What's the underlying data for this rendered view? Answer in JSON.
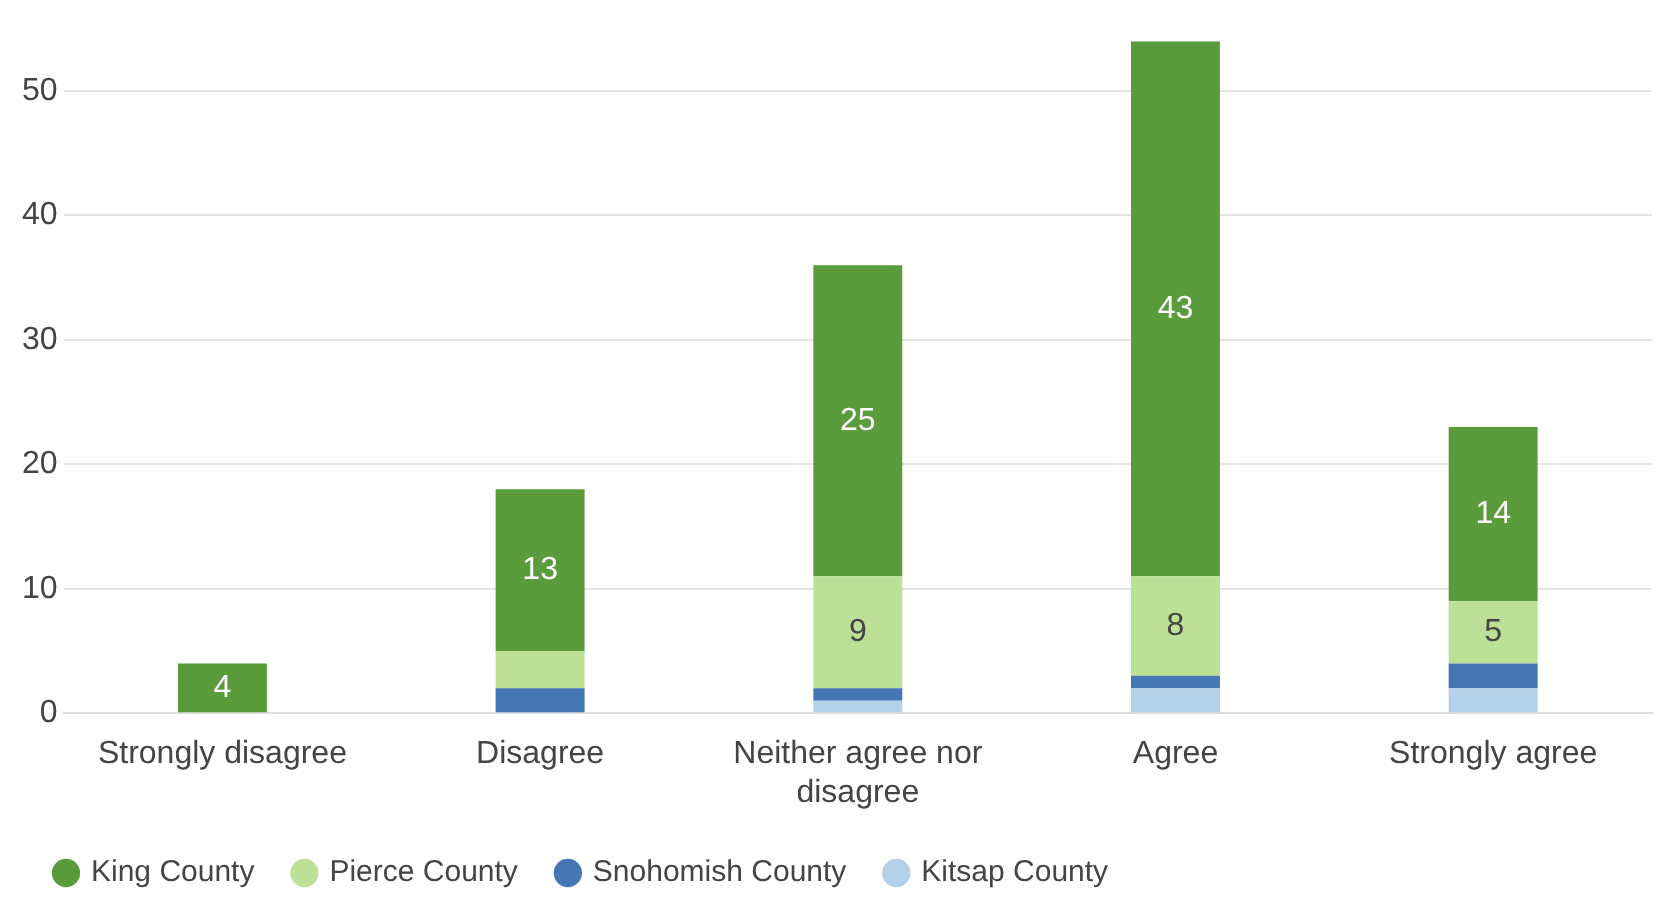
{
  "chart_data": {
    "type": "bar",
    "stacked": true,
    "categories": [
      "Strongly disagree",
      "Disagree",
      "Neither agree nor disagree",
      "Agree",
      "Strongly agree"
    ],
    "series": [
      {
        "name": "Kitsap County",
        "color": "#b3d1e8",
        "values": [
          0,
          0,
          1,
          2,
          2
        ],
        "value_labels": [
          null,
          null,
          null,
          null,
          null
        ]
      },
      {
        "name": "Snohomish County",
        "color": "#4477b4",
        "values": [
          0,
          2,
          1,
          1,
          2
        ],
        "value_labels": [
          null,
          null,
          null,
          null,
          null
        ]
      },
      {
        "name": "Pierce County",
        "color": "#bde097",
        "values": [
          0,
          3,
          9,
          8,
          5
        ],
        "value_labels": [
          null,
          null,
          "9",
          "8",
          "5"
        ]
      },
      {
        "name": "King County",
        "color": "#5a9c3c",
        "values": [
          4,
          13,
          25,
          43,
          14
        ],
        "value_labels": [
          "4",
          "13",
          "25",
          "43",
          "14"
        ]
      }
    ],
    "ylim": [
      0,
      54
    ],
    "yticks": [
      0,
      10,
      20,
      30,
      40,
      50
    ],
    "grid": "y",
    "legend": "bottom left"
  }
}
